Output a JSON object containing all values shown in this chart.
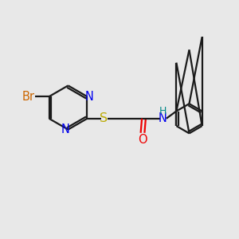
{
  "bg_color": "#e8e8e8",
  "bond_color": "#1a1a1a",
  "N_color": "#0000ee",
  "S_color": "#bbaa00",
  "O_color": "#ee0000",
  "Br_color": "#cc6600",
  "NH_N_color": "#0000ee",
  "NH_H_color": "#008888",
  "line_width": 1.6,
  "font_size": 10.5,
  "fig_size": [
    3.0,
    3.0
  ],
  "dpi": 100,
  "xlim": [
    0,
    10
  ],
  "ylim": [
    0,
    10
  ]
}
